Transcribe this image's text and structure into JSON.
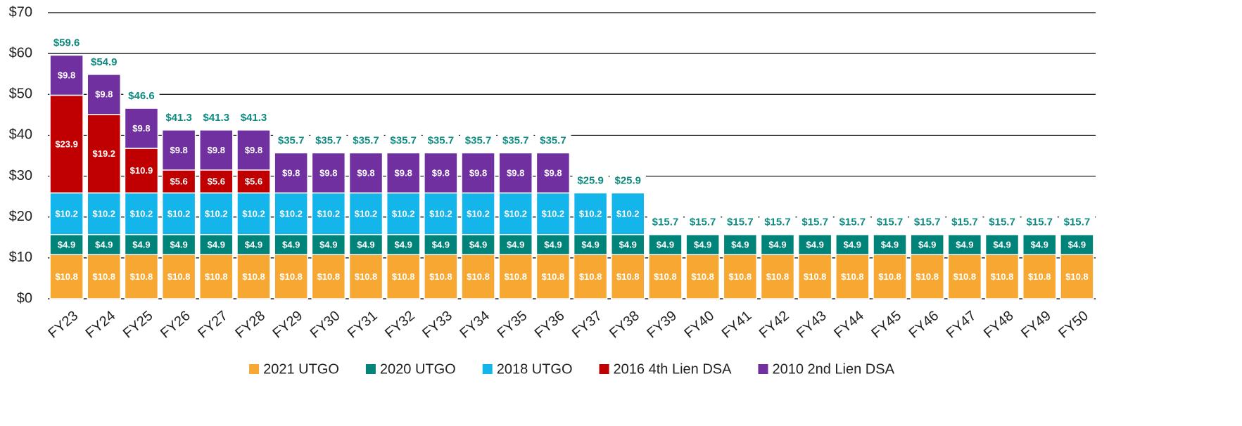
{
  "chart_data": {
    "type": "stacked_bar",
    "categories": [
      "FY23",
      "FY24",
      "FY25",
      "FY26",
      "FY27",
      "FY28",
      "FY29",
      "FY30",
      "FY31",
      "FY32",
      "FY33",
      "FY34",
      "FY35",
      "FY36",
      "FY37",
      "FY38",
      "FY39",
      "FY40",
      "FY41",
      "FY42",
      "FY43",
      "FY44",
      "FY45",
      "FY46",
      "FY47",
      "FY48",
      "FY49",
      "FY50"
    ],
    "series": [
      {
        "name": "2021 UTGO",
        "color": "#f7a833",
        "values": [
          10.8,
          10.8,
          10.8,
          10.8,
          10.8,
          10.8,
          10.8,
          10.8,
          10.8,
          10.8,
          10.8,
          10.8,
          10.8,
          10.8,
          10.8,
          10.8,
          10.8,
          10.8,
          10.8,
          10.8,
          10.8,
          10.8,
          10.8,
          10.8,
          10.8,
          10.8,
          10.8,
          10.8
        ],
        "value_labels": [
          "$10.8",
          "$10.8",
          "$10.8",
          "$10.8",
          "$10.8",
          "$10.8",
          "$10.8",
          "$10.8",
          "$10.8",
          "$10.8",
          "$10.8",
          "$10.8",
          "$10.8",
          "$10.8",
          "$10.8",
          "$10.8",
          "$10.8",
          "$10.8",
          "$10.8",
          "$10.8",
          "$10.8",
          "$10.8",
          "$10.8",
          "$10.8",
          "$10.8",
          "$10.8",
          "$10.8",
          "$10.8"
        ]
      },
      {
        "name": "2020 UTGO",
        "color": "#00847a",
        "values": [
          4.9,
          4.9,
          4.9,
          4.9,
          4.9,
          4.9,
          4.9,
          4.9,
          4.9,
          4.9,
          4.9,
          4.9,
          4.9,
          4.9,
          4.9,
          4.9,
          4.9,
          4.9,
          4.9,
          4.9,
          4.9,
          4.9,
          4.9,
          4.9,
          4.9,
          4.9,
          4.9,
          4.9
        ],
        "value_labels": [
          "$4.9",
          "$4.9",
          "$4.9",
          "$4.9",
          "$4.9",
          "$4.9",
          "$4.9",
          "$4.9",
          "$4.9",
          "$4.9",
          "$4.9",
          "$4.9",
          "$4.9",
          "$4.9",
          "$4.9",
          "$4.9",
          "$4.9",
          "$4.9",
          "$4.9",
          "$4.9",
          "$4.9",
          "$4.9",
          "$4.9",
          "$4.9",
          "$4.9",
          "$4.9",
          "$4.9",
          "$4.9"
        ]
      },
      {
        "name": "2018 UTGO",
        "color": "#13b5ea",
        "values": [
          10.2,
          10.2,
          10.2,
          10.2,
          10.2,
          10.2,
          10.2,
          10.2,
          10.2,
          10.2,
          10.2,
          10.2,
          10.2,
          10.2,
          10.2,
          10.2,
          null,
          null,
          null,
          null,
          null,
          null,
          null,
          null,
          null,
          null,
          null,
          null
        ],
        "value_labels": [
          "$10.2",
          "$10.2",
          "$10.2",
          "$10.2",
          "$10.2",
          "$10.2",
          "$10.2",
          "$10.2",
          "$10.2",
          "$10.2",
          "$10.2",
          "$10.2",
          "$10.2",
          "$10.2",
          "$10.2",
          "$10.2",
          null,
          null,
          null,
          null,
          null,
          null,
          null,
          null,
          null,
          null,
          null,
          null
        ]
      },
      {
        "name": "2016 4th Lien DSA",
        "color": "#c00000",
        "values": [
          23.9,
          19.2,
          10.9,
          5.6,
          5.6,
          5.6,
          null,
          null,
          null,
          null,
          null,
          null,
          null,
          null,
          null,
          null,
          null,
          null,
          null,
          null,
          null,
          null,
          null,
          null,
          null,
          null,
          null,
          null
        ],
        "value_labels": [
          "$23.9",
          "$19.2",
          "$10.9",
          "$5.6",
          "$5.6",
          "$5.6",
          null,
          null,
          null,
          null,
          null,
          null,
          null,
          null,
          null,
          null,
          null,
          null,
          null,
          null,
          null,
          null,
          null,
          null,
          null,
          null,
          null,
          null
        ]
      },
      {
        "name": "2010 2nd Lien DSA",
        "color": "#7030a0",
        "values": [
          9.8,
          9.8,
          9.8,
          9.8,
          9.8,
          9.8,
          9.8,
          9.8,
          9.8,
          9.8,
          9.8,
          9.8,
          9.8,
          9.8,
          null,
          null,
          null,
          null,
          null,
          null,
          null,
          null,
          null,
          null,
          null,
          null,
          null,
          null
        ],
        "value_labels": [
          "$9.8",
          "$9.8",
          "$9.8",
          "$9.8",
          "$9.8",
          "$9.8",
          "$9.8",
          "$9.8",
          "$9.8",
          "$9.8",
          "$9.8",
          "$9.8",
          "$9.8",
          "$9.8",
          null,
          null,
          null,
          null,
          null,
          null,
          null,
          null,
          null,
          null,
          null,
          null,
          null,
          null
        ]
      }
    ],
    "totals": [
      59.6,
      54.9,
      46.6,
      41.3,
      41.3,
      41.3,
      35.7,
      35.7,
      35.7,
      35.7,
      35.7,
      35.7,
      35.7,
      35.7,
      25.9,
      25.9,
      15.7,
      15.7,
      15.7,
      15.7,
      15.7,
      15.7,
      15.7,
      15.7,
      15.7,
      15.7,
      15.7,
      15.7
    ],
    "total_labels": [
      "$59.6",
      "$54.9",
      "$46.6",
      "$41.3",
      "$41.3",
      "$41.3",
      "$35.7",
      "$35.7",
      "$35.7",
      "$35.7",
      "$35.7",
      "$35.7",
      "$35.7",
      "$35.7",
      "$25.9",
      "$25.9",
      "$15.7",
      "$15.7",
      "$15.7",
      "$15.7",
      "$15.7",
      "$15.7",
      "$15.7",
      "$15.7",
      "$15.7",
      "$15.7",
      "$15.7",
      "$15.7"
    ],
    "total_color": "#0e8a80",
    "ylim": [
      0,
      70
    ],
    "yticks": [
      {
        "value": 0,
        "label": "$0"
      },
      {
        "value": 10,
        "label": "$10"
      },
      {
        "value": 20,
        "label": "$20"
      },
      {
        "value": 30,
        "label": "$30"
      },
      {
        "value": 40,
        "label": "$40"
      },
      {
        "value": 50,
        "label": "$50"
      },
      {
        "value": 60,
        "label": "$60"
      },
      {
        "value": 70,
        "label": "$70"
      }
    ],
    "grid": true
  }
}
